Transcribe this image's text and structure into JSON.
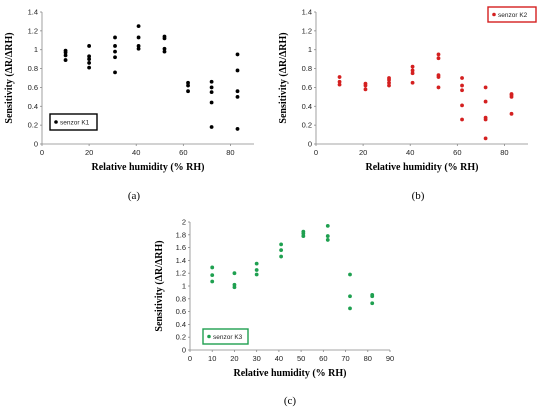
{
  "chart_data": [
    {
      "type": "scatter",
      "caption": "(a)",
      "xlabel": "Relative humidity (% RH)",
      "ylabel": "Sensitivity (ΔR/ΔRH)",
      "xlim": [
        0,
        90
      ],
      "ylim": [
        0,
        1.4
      ],
      "xticks": [
        0,
        20,
        40,
        60,
        80
      ],
      "yticks": [
        0,
        0.2,
        0.4,
        0.6,
        0.8,
        1,
        1.2,
        1.4
      ],
      "ytick_labels": [
        "0",
        "0.2",
        "0.4",
        "0.6",
        "0.8",
        "1",
        "1.2",
        "1.4"
      ],
      "legend_position": "bottom-left",
      "series": [
        {
          "name": "senzor K1",
          "color": "#000000",
          "legend_border_color": "#000000",
          "x": [
            10,
            10,
            10,
            10,
            20,
            20,
            20,
            20,
            20,
            31,
            31,
            31,
            31,
            31,
            41,
            41,
            41,
            41,
            52,
            52,
            52,
            52,
            62,
            62,
            62,
            72,
            72,
            72,
            72,
            72,
            83,
            83,
            83,
            83,
            83
          ],
          "y": [
            0.89,
            0.94,
            0.97,
            0.99,
            0.81,
            0.86,
            0.9,
            0.93,
            1.04,
            0.76,
            0.92,
            0.98,
            1.04,
            1.13,
            1.01,
            1.04,
            1.13,
            1.25,
            0.98,
            1.01,
            1.12,
            1.14,
            0.56,
            0.62,
            0.65,
            0.18,
            0.44,
            0.55,
            0.6,
            0.66,
            0.16,
            0.5,
            0.56,
            0.78,
            0.95
          ]
        }
      ]
    },
    {
      "type": "scatter",
      "caption": "(b)",
      "xlabel": "Relative humidity (% RH)",
      "ylabel": "Sensitivity (ΔR/ΔRH)",
      "xlim": [
        0,
        90
      ],
      "ylim": [
        0,
        1.4
      ],
      "xticks": [
        0,
        20,
        40,
        60,
        80
      ],
      "yticks": [
        0,
        0.2,
        0.4,
        0.6,
        0.8,
        1,
        1.2,
        1.4
      ],
      "ytick_labels": [
        "0",
        "0.2",
        "0.4",
        "0.6",
        "0.8",
        "1",
        "1.2",
        "1.4"
      ],
      "legend_position": "top-right",
      "series": [
        {
          "name": "senzor K2",
          "color": "#d42020",
          "legend_border_color": "#d42020",
          "x": [
            10,
            10,
            10,
            21,
            21,
            21,
            31,
            31,
            31,
            31,
            41,
            41,
            41,
            41,
            52,
            52,
            52,
            52,
            52,
            62,
            62,
            62,
            62,
            62,
            72,
            72,
            72,
            72,
            72,
            83,
            83,
            83,
            83
          ],
          "y": [
            0.63,
            0.66,
            0.71,
            0.58,
            0.62,
            0.64,
            0.62,
            0.65,
            0.68,
            0.7,
            0.65,
            0.75,
            0.78,
            0.82,
            0.6,
            0.71,
            0.73,
            0.91,
            0.95,
            0.26,
            0.41,
            0.57,
            0.62,
            0.7,
            0.06,
            0.26,
            0.28,
            0.45,
            0.6,
            0.32,
            0.5,
            0.52,
            0.53
          ]
        }
      ]
    },
    {
      "type": "scatter",
      "caption": "(c)",
      "xlabel": "Relative humidity (% RH)",
      "ylabel": "Sensitivity (ΔR/ΔRH)",
      "xlim": [
        0,
        90
      ],
      "ylim": [
        0,
        2
      ],
      "xticks": [
        0,
        10,
        20,
        30,
        40,
        50,
        60,
        70,
        80,
        90
      ],
      "yticks": [
        0,
        0.2,
        0.4,
        0.6,
        0.8,
        1,
        1.2,
        1.4,
        1.6,
        1.8,
        2
      ],
      "ytick_labels": [
        "0",
        "0.2",
        "0.4",
        "0.6",
        "0.8",
        "1",
        "1.2",
        "1.4",
        "1.6",
        "1.8",
        "2"
      ],
      "legend_position": "bottom-left",
      "series": [
        {
          "name": "senzor K3",
          "color": "#1fa050",
          "legend_border_color": "#1fa050",
          "x": [
            10,
            10,
            10,
            20,
            20,
            20,
            30,
            30,
            30,
            41,
            41,
            41,
            51,
            51,
            51,
            62,
            62,
            62,
            72,
            72,
            72,
            82,
            82,
            82
          ],
          "y": [
            1.07,
            1.17,
            1.29,
            0.98,
            1.02,
            1.2,
            1.18,
            1.25,
            1.35,
            1.46,
            1.56,
            1.65,
            1.78,
            1.82,
            1.85,
            1.72,
            1.78,
            1.94,
            0.65,
            0.84,
            1.18,
            0.73,
            0.84,
            0.86
          ]
        }
      ]
    }
  ]
}
